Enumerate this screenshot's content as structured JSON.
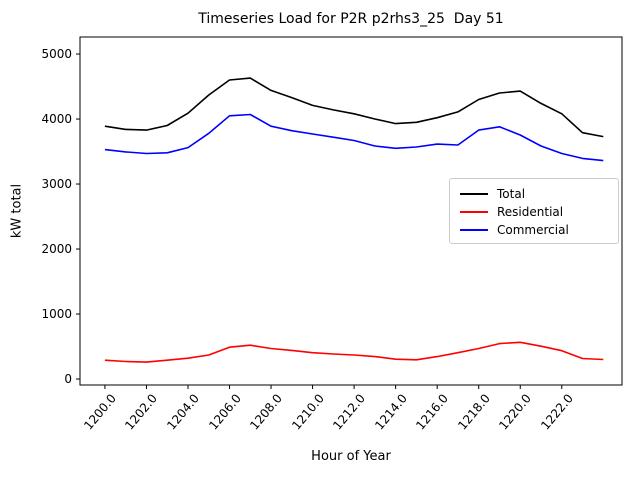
{
  "title": "Timeseries Load for P2R p2rhs3_25  Day 51",
  "chart_data": {
    "type": "line",
    "title": "Timeseries Load for P2R p2rhs3_25  Day 51",
    "xlabel": "Hour of Year",
    "ylabel": "kW total",
    "xlim": [
      1198.8,
      1224.9
    ],
    "ylim": [
      -92,
      5262
    ],
    "grid": false,
    "legend_position": "center right",
    "x_ticks": [
      1200,
      1202,
      1204,
      1206,
      1208,
      1210,
      1212,
      1214,
      1216,
      1218,
      1220,
      1222
    ],
    "x_tick_labels": [
      "1200.0",
      "1202.0",
      "1204.0",
      "1206.0",
      "1208.0",
      "1210.0",
      "1212.0",
      "1214.0",
      "1216.0",
      "1218.0",
      "1220.0",
      "1222.0"
    ],
    "y_ticks": [
      0,
      1000,
      2000,
      3000,
      4000,
      5000
    ],
    "y_tick_labels": [
      "0",
      "1000",
      "2000",
      "3000",
      "4000",
      "5000"
    ],
    "x": [
      1200,
      1201,
      1202,
      1203,
      1204,
      1205,
      1206,
      1207,
      1208,
      1209,
      1210,
      1211,
      1212,
      1213,
      1214,
      1215,
      1216,
      1217,
      1218,
      1219,
      1220,
      1221,
      1222,
      1223,
      1224
    ],
    "series": [
      {
        "name": "Total",
        "color": "#000000",
        "values": [
          3890,
          3840,
          3830,
          3900,
          4090,
          4370,
          4600,
          4630,
          4440,
          4330,
          4210,
          4140,
          4080,
          4000,
          3930,
          3950,
          4020,
          4110,
          4300,
          4400,
          4430,
          4240,
          4080,
          3790,
          3730
        ]
      },
      {
        "name": "Residential",
        "color": "#ff0000",
        "values": [
          290,
          270,
          260,
          290,
          320,
          370,
          490,
          520,
          470,
          440,
          405,
          385,
          370,
          345,
          305,
          295,
          345,
          405,
          470,
          545,
          565,
          505,
          435,
          315,
          300
        ]
      },
      {
        "name": "Commercial",
        "color": "#0000ff",
        "values": [
          3530,
          3495,
          3470,
          3480,
          3560,
          3780,
          4050,
          4070,
          3890,
          3820,
          3770,
          3720,
          3670,
          3585,
          3550,
          3570,
          3615,
          3600,
          3830,
          3880,
          3755,
          3585,
          3470,
          3395,
          3360
        ]
      }
    ]
  }
}
